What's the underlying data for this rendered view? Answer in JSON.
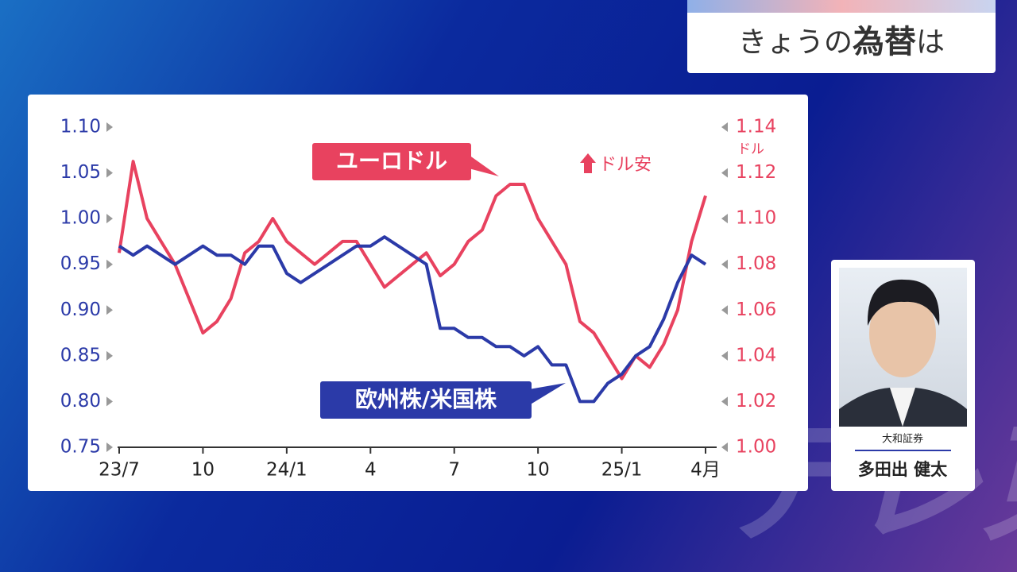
{
  "header": {
    "prefix": "きょうの",
    "emphasis": "為替",
    "suffix": "は"
  },
  "chart_data": {
    "type": "line",
    "categories": [
      "23/7",
      null,
      null,
      null,
      null,
      null,
      "10",
      null,
      null,
      null,
      null,
      null,
      "24/1",
      null,
      null,
      null,
      null,
      null,
      "4",
      null,
      null,
      null,
      null,
      null,
      "7",
      null,
      null,
      null,
      null,
      null,
      "10",
      null,
      null,
      null,
      null,
      null,
      "25/1",
      null,
      null,
      null,
      null,
      null,
      "4月"
    ],
    "series": [
      {
        "name": "欧州株/米国株",
        "color": "#2b3aa8",
        "axis": "y",
        "values": [
          0.97,
          0.96,
          0.97,
          0.96,
          0.95,
          0.96,
          0.97,
          0.96,
          0.96,
          0.95,
          0.97,
          0.97,
          0.94,
          0.93,
          0.94,
          0.95,
          0.96,
          0.97,
          0.97,
          0.98,
          0.97,
          0.96,
          0.95,
          0.88,
          0.88,
          0.87,
          0.87,
          0.86,
          0.86,
          0.85,
          0.86,
          0.84,
          0.84,
          0.8,
          0.8,
          0.82,
          0.83,
          0.85,
          0.86,
          0.89,
          0.93,
          0.96,
          0.95
        ]
      },
      {
        "name": "ユーロドル",
        "color": "#e8425f",
        "axis": "y2",
        "values": [
          1.085,
          1.125,
          1.1,
          1.09,
          1.08,
          1.065,
          1.05,
          1.055,
          1.065,
          1.085,
          1.09,
          1.1,
          1.09,
          1.085,
          1.08,
          1.085,
          1.09,
          1.09,
          1.08,
          1.07,
          1.075,
          1.08,
          1.085,
          1.075,
          1.08,
          1.09,
          1.095,
          1.11,
          1.115,
          1.115,
          1.1,
          1.09,
          1.08,
          1.055,
          1.05,
          1.04,
          1.03,
          1.04,
          1.035,
          1.045,
          1.06,
          1.09,
          1.11
        ]
      }
    ],
    "ylim": [
      0.75,
      1.1
    ],
    "yticks": [
      0.75,
      {
        "value": 0.8,
        "label": "0.80"
      },
      0.85,
      {
        "value": 0.9,
        "label": "0.90"
      },
      0.95,
      {
        "value": 1.0,
        "label": "1.00"
      },
      1.05,
      {
        "value": 1.1,
        "label": "1.10"
      }
    ],
    "y2lim": [
      1.0,
      1.14
    ],
    "y2ticks": [
      {
        "value": 1.0,
        "label": "1.00"
      },
      1.02,
      1.04,
      1.06,
      1.08,
      {
        "value": 1.1,
        "label": "1.10"
      },
      1.12,
      1.14
    ],
    "y2_unit": "ドル",
    "annotation": "ドル安"
  },
  "guest": {
    "company": "大和証券",
    "name": "多田出 健太"
  },
  "watermark": "テレ東"
}
